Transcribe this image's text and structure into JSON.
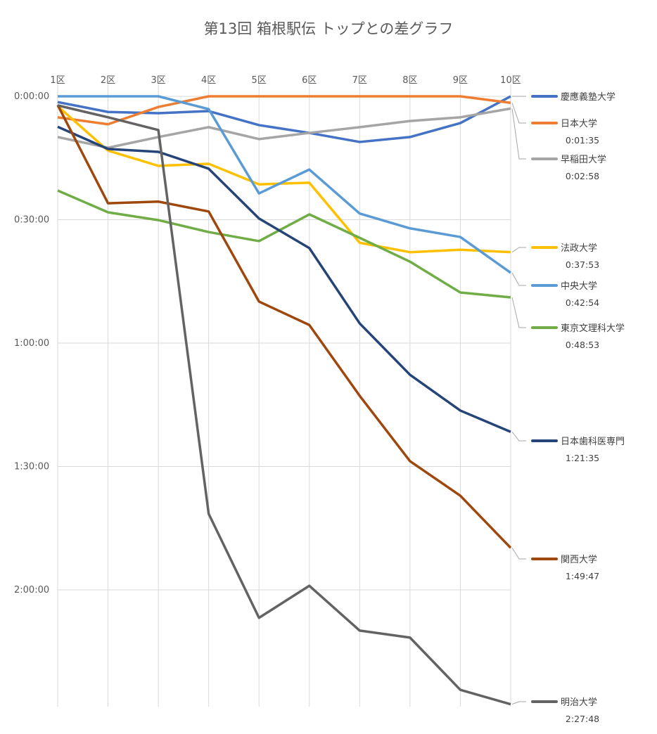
{
  "chart_data": {
    "type": "line",
    "title": "第13回 箱根駅伝 トップとの差グラフ",
    "xlabel": "",
    "ylabel": "",
    "categories": [
      "1区",
      "2区",
      "3区",
      "4区",
      "5区",
      "6区",
      "7区",
      "8区",
      "9区",
      "10区"
    ],
    "y_unit": "minutes behind leader (axis inverted, labels h:mm:ss)",
    "ylim": [
      0,
      150
    ],
    "y_ticks": [
      {
        "value": 0,
        "label": "0:00:00"
      },
      {
        "value": 30,
        "label": "0:30:00"
      },
      {
        "value": 60,
        "label": "1:00:00"
      },
      {
        "value": 90,
        "label": "1:30:00"
      },
      {
        "value": 120,
        "label": "2:00:00"
      }
    ],
    "grid": true,
    "legend_placement": "right",
    "series": [
      {
        "name": "慶應義塾大学",
        "color": "#4472C4",
        "final_label": "",
        "values": [
          1.4,
          3.8,
          4.1,
          3.6,
          7.0,
          8.9,
          11.1,
          9.9,
          6.5,
          0
        ]
      },
      {
        "name": "日本大学",
        "color": "#ED7D31",
        "final_label": "0:01:35",
        "values": [
          5.1,
          6.8,
          2.6,
          0,
          0,
          0,
          0,
          0,
          0,
          1.58
        ]
      },
      {
        "name": "早稲田大学",
        "color": "#A5A5A5",
        "final_label": "0:02:58",
        "values": [
          9.9,
          12.5,
          9.9,
          7.5,
          10.4,
          8.9,
          7.5,
          6.0,
          5.1,
          2.97
        ]
      },
      {
        "name": "法政大学",
        "color": "#FFC000",
        "final_label": "0:37:53",
        "values": [
          2.4,
          13.2,
          16.9,
          16.4,
          21.4,
          21.0,
          35.6,
          37.9,
          37.3,
          37.88
        ]
      },
      {
        "name": "中央大学",
        "color": "#5B9BD5",
        "final_label": "0:42:54",
        "values": [
          0,
          0,
          0,
          3.1,
          23.6,
          17.8,
          28.5,
          32.1,
          34.2,
          42.9
        ]
      },
      {
        "name": "東京文理科大学",
        "color": "#70AD47",
        "final_label": "0:48:53",
        "values": [
          22.9,
          28.2,
          30.1,
          33.0,
          35.2,
          28.7,
          34.4,
          40.2,
          47.7,
          48.88
        ]
      },
      {
        "name": "日本歯科医専門",
        "color": "#264478",
        "final_label": "1:21:35",
        "values": [
          7.4,
          12.8,
          13.5,
          17.6,
          29.7,
          36.9,
          55.2,
          67.7,
          76.4,
          81.58
        ]
      },
      {
        "name": "関西大学",
        "color": "#9E480E",
        "final_label": "1:49:47",
        "values": [
          2.1,
          26.0,
          25.6,
          28.0,
          49.9,
          55.6,
          72.8,
          88.7,
          97.1,
          109.78
        ]
      },
      {
        "name": "明治大学",
        "color": "#636363",
        "final_label": "2:27:48",
        "values": [
          2.2,
          5.1,
          8.2,
          101.5,
          126.8,
          119.0,
          129.9,
          131.6,
          144.3,
          147.8
        ]
      }
    ]
  }
}
